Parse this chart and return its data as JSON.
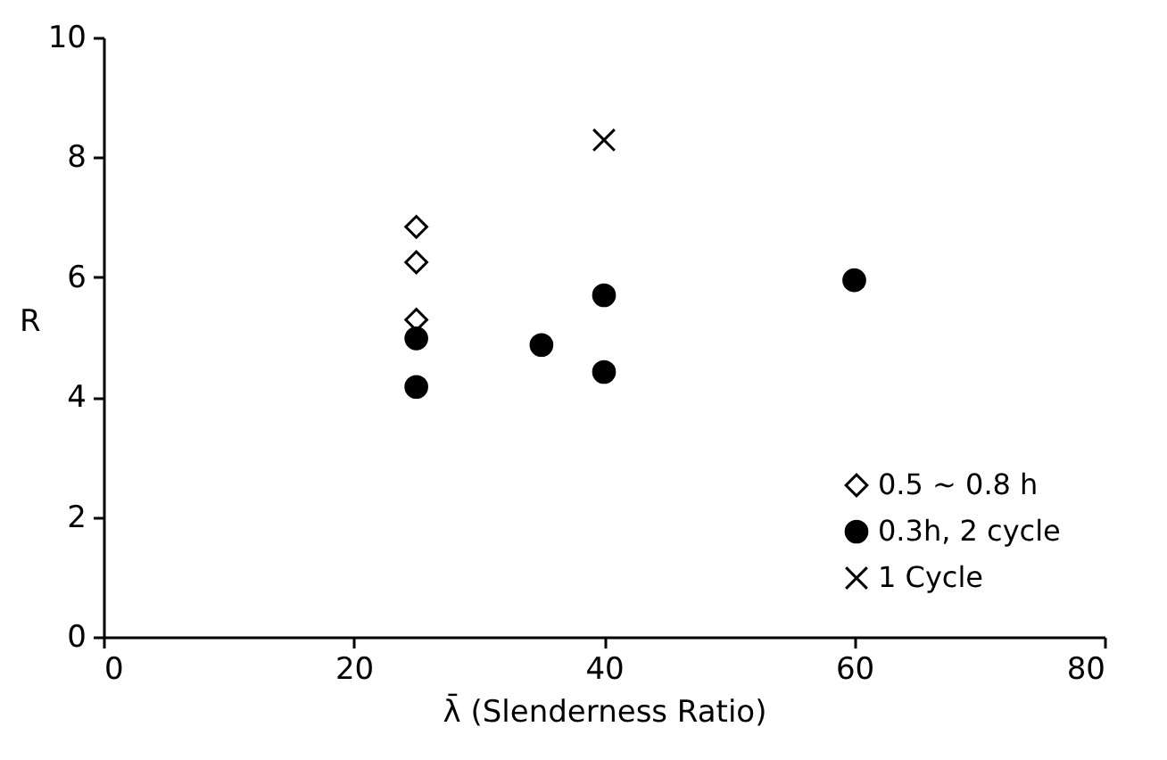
{
  "chart_data": {
    "type": "scatter",
    "xlabel": "λ̄ (Slenderness Ratio)",
    "ylabel": "R",
    "xlim": [
      0,
      80
    ],
    "xticks": [
      0,
      20,
      40,
      60,
      80
    ],
    "ylim": [
      0,
      10
    ],
    "yticks": [
      0,
      2,
      4,
      6,
      8,
      10
    ],
    "grid": false,
    "legend": "bottom right",
    "series": [
      {
        "name": "0.5 ~ 0.8 h",
        "color": "#000000",
        "marker": "diamond",
        "x": [
          25,
          25,
          25
        ],
        "values": [
          6.84,
          6.25,
          5.29
        ]
      },
      {
        "name": "0.3h, 2 cycle",
        "color": "#000000",
        "marker": "circle",
        "x": [
          25,
          25,
          35,
          40,
          40,
          60
        ],
        "values": [
          4.98,
          4.17,
          4.87,
          5.7,
          4.42,
          5.95
        ]
      },
      {
        "name": "1 Cycle",
        "color": "#000000",
        "marker": "cross",
        "x": [
          40
        ],
        "values": [
          8.29
        ]
      }
    ]
  }
}
